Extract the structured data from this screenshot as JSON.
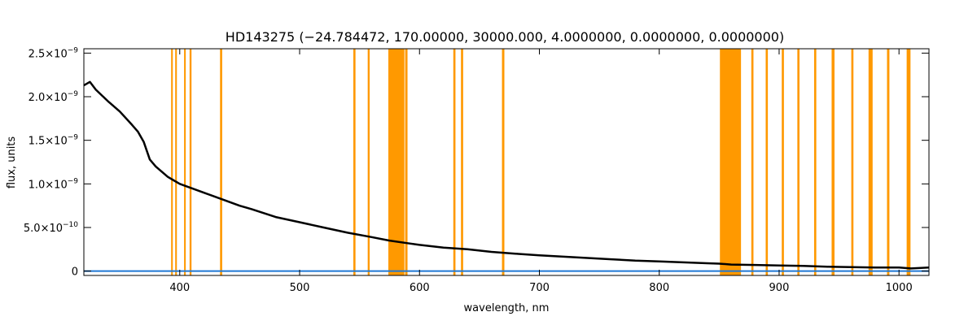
{
  "chart_data": {
    "type": "line",
    "title": "HD143275   (−24.784472, 170.00000, 30000.000, 4.0000000, 0.0000000, 0.0000000)",
    "xlabel": "wavelength, nm",
    "ylabel": "flux, units",
    "xlim": [
      320,
      1025
    ],
    "ylim": [
      -5e-11,
      2.55e-09
    ],
    "xticks": [
      400,
      500,
      600,
      700,
      800,
      900,
      1000
    ],
    "xtick_labels": [
      "400",
      "500",
      "600",
      "700",
      "800",
      "900",
      "1000"
    ],
    "yticks": [
      0,
      5e-10,
      1e-09,
      1.5e-09,
      2e-09,
      2.5e-09
    ],
    "ytick_labels": [
      {
        "mantissa": "0",
        "exp": ""
      },
      {
        "mantissa": "5.0×10",
        "exp": "−10"
      },
      {
        "mantissa": "1.0×10",
        "exp": "−9"
      },
      {
        "mantissa": "1.5×10",
        "exp": "−9"
      },
      {
        "mantissa": "2.0×10",
        "exp": "−9"
      },
      {
        "mantissa": "2.5×10",
        "exp": "−9"
      }
    ],
    "grid": false,
    "colors": {
      "spectrum": "#000000",
      "masks": "#ff9900",
      "baseline": "#1f77d4",
      "axes": "#000000"
    },
    "mask_bands_nm": [
      [
        392.8,
        394.2
      ],
      [
        396.2,
        397.6
      ],
      [
        403.6,
        405.0
      ],
      [
        408.2,
        409.8
      ],
      [
        433.6,
        435.4
      ],
      [
        544.8,
        546.6
      ],
      [
        556.8,
        558.4
      ],
      [
        574.0,
        587.4
      ],
      [
        588.0,
        590.0
      ],
      [
        628.2,
        630.0
      ],
      [
        634.6,
        636.4
      ],
      [
        668.8,
        670.8
      ],
      [
        850.6,
        868.2
      ],
      [
        876.8,
        878.6
      ],
      [
        888.8,
        890.6
      ],
      [
        902.2,
        904.0
      ],
      [
        915.2,
        917.0
      ],
      [
        929.2,
        931.0
      ],
      [
        943.8,
        946.2
      ],
      [
        960.2,
        962.0
      ],
      [
        974.6,
        978.0
      ],
      [
        990.0,
        992.0
      ],
      [
        1006.4,
        1009.6
      ]
    ],
    "series": [
      {
        "x": [
          320,
          325,
          330,
          340,
          350,
          360,
          365,
          370,
          375,
          380,
          385,
          390,
          395,
          400,
          410,
          420,
          430,
          440,
          450,
          460,
          480,
          500,
          520,
          540,
          560,
          575,
          590,
          600,
          620,
          640,
          660,
          680,
          700,
          720,
          740,
          760,
          780,
          800,
          820,
          840,
          850,
          860,
          880,
          900,
          920,
          940,
          960,
          980,
          1000,
          1010,
          1025
        ],
        "y": [
          2.13e-09,
          2.17e-09,
          2.08e-09,
          1.95e-09,
          1.83e-09,
          1.68e-09,
          1.6e-09,
          1.48e-09,
          1.28e-09,
          1.2e-09,
          1.14e-09,
          1.08e-09,
          1.04e-09,
          1e-09,
          9.5e-10,
          9e-10,
          8.5e-10,
          8e-10,
          7.5e-10,
          7.1e-10,
          6.2e-10,
          5.6e-10,
          5e-10,
          4.4e-10,
          3.9e-10,
          3.5e-10,
          3.2e-10,
          3e-10,
          2.7e-10,
          2.5e-10,
          2.2e-10,
          2e-10,
          1.8e-10,
          1.65e-10,
          1.5e-10,
          1.35e-10,
          1.2e-10,
          1.1e-10,
          1e-10,
          9e-11,
          8.5e-11,
          7.5e-11,
          7e-11,
          6.5e-11,
          6e-11,
          5e-11,
          4.5e-11,
          4e-11,
          4e-11,
          3e-11,
          4e-11
        ]
      },
      {
        "x": [
          320,
          1025
        ],
        "y": [
          0,
          0
        ]
      }
    ]
  }
}
